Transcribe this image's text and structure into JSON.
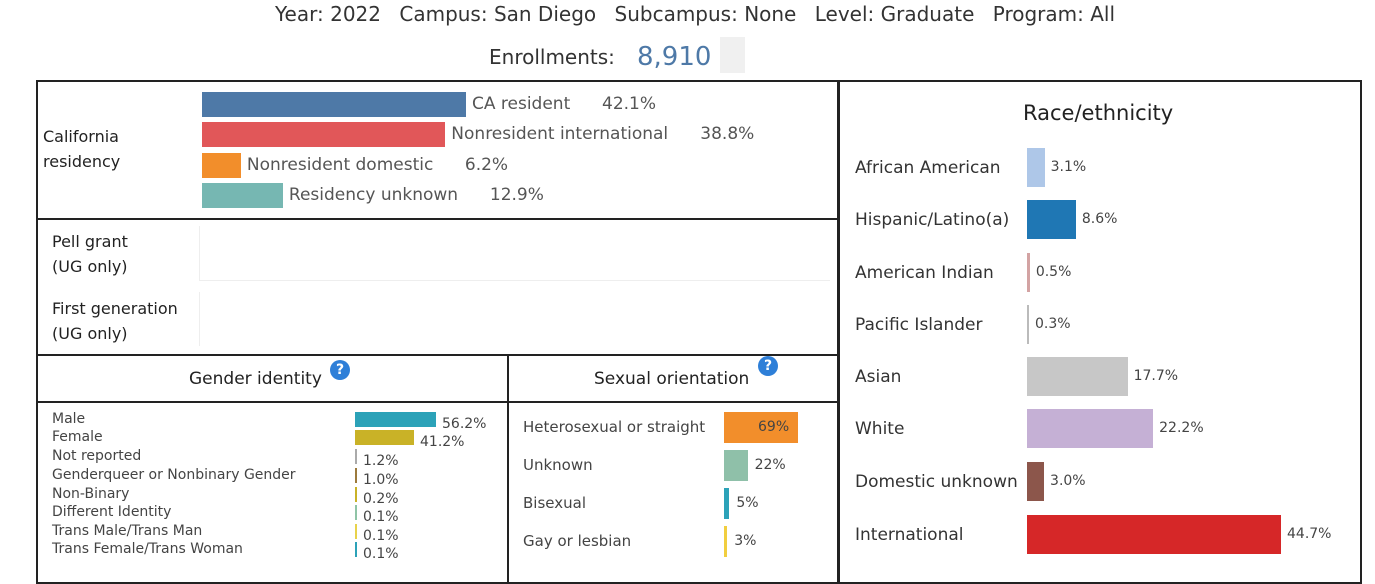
{
  "header": {
    "year": "Year: 2022",
    "campus": "Campus: San Diego",
    "subcampus": "Subcampus: None",
    "level": "Level: Graduate",
    "program": "Program: All",
    "enrollments_label": "Enrollments:",
    "enrollments_value": "8,910"
  },
  "residency": {
    "title_line1": "California",
    "title_line2": "residency",
    "items": [
      {
        "label": "CA resident",
        "pct_text": "42.1%",
        "value": 42.1,
        "color": "#4e79a7"
      },
      {
        "label": "Nonresident international",
        "pct_text": "38.8%",
        "value": 38.8,
        "color": "#e15759"
      },
      {
        "label": "Nonresident domestic",
        "pct_text": "6.2%",
        "value": 6.2,
        "color": "#f28e2b"
      },
      {
        "label": "Residency unknown",
        "pct_text": "12.9%",
        "value": 12.9,
        "color": "#76b7b2"
      }
    ]
  },
  "pell": {
    "line1": "Pell grant",
    "line2": "(UG only)"
  },
  "firstgen": {
    "line1": "First generation",
    "line2": "(UG only)"
  },
  "gender": {
    "title": "Gender identity",
    "items": [
      {
        "label": "Male",
        "pct_text": "56.2%",
        "value": 56.2,
        "color": "#2ca2b8"
      },
      {
        "label": "Female",
        "pct_text": "41.2%",
        "value": 41.2,
        "color": "#c9b227"
      },
      {
        "label": "Not reported",
        "pct_text": "1.2%",
        "value": 1.2,
        "color": "#aaaaaa"
      },
      {
        "label": "Genderqueer or Nonbinary Gender",
        "pct_text": "1.0%",
        "value": 1.0,
        "color": "#9c7a3c"
      },
      {
        "label": "Non-Binary",
        "pct_text": "0.2%",
        "value": 0.2,
        "color": "#c9b227"
      },
      {
        "label": "Different Identity",
        "pct_text": "0.1%",
        "value": 0.1,
        "color": "#8fc4a6"
      },
      {
        "label": "Trans Male/Trans Man",
        "pct_text": "0.1%",
        "value": 0.1,
        "color": "#e8d24a"
      },
      {
        "label": "Trans Female/Trans Woman",
        "pct_text": "0.1%",
        "value": 0.1,
        "color": "#2ca2b8"
      }
    ]
  },
  "orientation": {
    "title": "Sexual orientation",
    "items": [
      {
        "label": "Heterosexual or straight",
        "pct_text": "69%",
        "value": 69,
        "color": "#f28e2b"
      },
      {
        "label": "Unknown",
        "pct_text": "22%",
        "value": 22,
        "color": "#8fc0a9"
      },
      {
        "label": "Bisexual",
        "pct_text": "5%",
        "value": 5,
        "color": "#2ca2b8"
      },
      {
        "label": "Gay or lesbian",
        "pct_text": "3%",
        "value": 3,
        "color": "#f1ce3f"
      }
    ]
  },
  "race": {
    "title": "Race/ethnicity",
    "items": [
      {
        "label": "African American",
        "pct_text": "3.1%",
        "value": 3.1,
        "color": "#aec7e8"
      },
      {
        "label": "Hispanic/Latino(a)",
        "pct_text": "8.6%",
        "value": 8.6,
        "color": "#1f77b4"
      },
      {
        "label": "American Indian",
        "pct_text": "0.5%",
        "value": 0.5,
        "color": "#d3a3a3"
      },
      {
        "label": "Pacific Islander",
        "pct_text": "0.3%",
        "value": 0.3,
        "color": "#bbbbbb"
      },
      {
        "label": "Asian",
        "pct_text": "17.7%",
        "value": 17.7,
        "color": "#c7c7c7"
      },
      {
        "label": "White",
        "pct_text": "22.2%",
        "value": 22.2,
        "color": "#c5b0d5"
      },
      {
        "label": "Domestic unknown",
        "pct_text": "3.0%",
        "value": 3.0,
        "color": "#8c564b"
      },
      {
        "label": "International",
        "pct_text": "44.7%",
        "value": 44.7,
        "color": "#d62728"
      }
    ]
  },
  "chart_data": [
    {
      "type": "bar",
      "title": "California residency",
      "categories": [
        "CA resident",
        "Nonresident international",
        "Nonresident domestic",
        "Residency unknown"
      ],
      "values": [
        42.1,
        38.8,
        6.2,
        12.9
      ]
    },
    {
      "type": "bar",
      "title": "Gender identity",
      "categories": [
        "Male",
        "Female",
        "Not reported",
        "Genderqueer or Nonbinary Gender",
        "Non-Binary",
        "Different Identity",
        "Trans Male/Trans Man",
        "Trans Female/Trans Woman"
      ],
      "values": [
        56.2,
        41.2,
        1.2,
        1.0,
        0.2,
        0.1,
        0.1,
        0.1
      ]
    },
    {
      "type": "bar",
      "title": "Sexual orientation",
      "categories": [
        "Heterosexual or straight",
        "Unknown",
        "Bisexual",
        "Gay or lesbian"
      ],
      "values": [
        69,
        22,
        5,
        3
      ]
    },
    {
      "type": "bar",
      "title": "Race/ethnicity",
      "categories": [
        "African American",
        "Hispanic/Latino(a)",
        "American Indian",
        "Pacific Islander",
        "Asian",
        "White",
        "Domestic unknown",
        "International"
      ],
      "values": [
        3.1,
        8.6,
        0.5,
        0.3,
        17.7,
        22.2,
        3.0,
        44.7
      ]
    }
  ]
}
